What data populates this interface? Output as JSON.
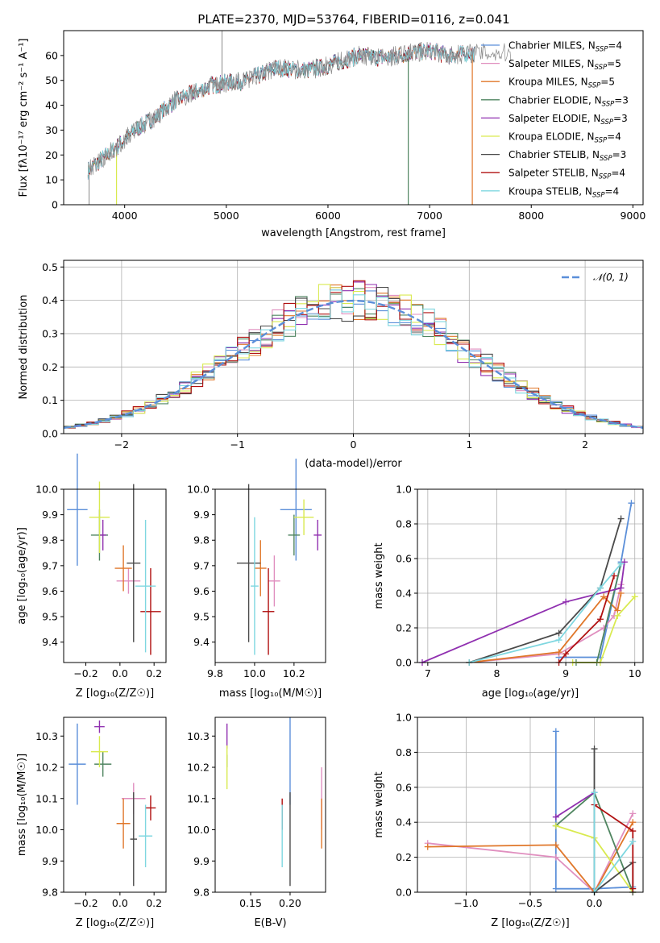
{
  "title": "PLATE=2370, MJD=53764, FIBERID=0116, z=0.041",
  "models": [
    {
      "name": "Chabrier MILES",
      "nssp": "4",
      "color": "#5b8fd9"
    },
    {
      "name": "Salpeter MILES",
      "nssp": "5",
      "color": "#e08fbf"
    },
    {
      "name": "Kroupa MILES",
      "nssp": "5",
      "color": "#e0772a"
    },
    {
      "name": "Chabrier ELODIE",
      "nssp": "3",
      "color": "#4f8560"
    },
    {
      "name": "Salpeter ELODIE",
      "nssp": "3",
      "color": "#9030b0"
    },
    {
      "name": "Kroupa ELODIE",
      "nssp": "4",
      "color": "#d9ea50"
    },
    {
      "name": "Chabrier STELIB",
      "nssp": "3",
      "color": "#4a4a4a"
    },
    {
      "name": "Salpeter STELIB",
      "nssp": "4",
      "color": "#b01010"
    },
    {
      "name": "Kroupa STELIB",
      "nssp": "4",
      "color": "#7fd7e0"
    }
  ],
  "chart_data": [
    {
      "type": "line",
      "title": "PLATE=2370, MJD=53764, FIBERID=0116, z=0.041",
      "xlabel": "wavelength [Angstrom, rest frame]",
      "ylabel": "Flux [fλ10⁻¹⁷ erg cm⁻² s⁻¹ A⁻¹]",
      "xlim": [
        3400,
        9100
      ],
      "ylim": [
        0,
        70
      ],
      "xticks": [
        "4000",
        "5000",
        "6000",
        "7000",
        "8000",
        "9000"
      ],
      "yticks": [
        "0",
        "10",
        "20",
        "30",
        "40",
        "50",
        "60"
      ],
      "grid": false,
      "legend": "right",
      "spectrum_knots": {
        "x": [
          3640,
          3800,
          4000,
          4100,
          4300,
          4500,
          4860,
          5000,
          5200,
          5500,
          5800,
          6000,
          6300,
          6560,
          6800,
          7000,
          7200,
          7400
        ],
        "y": [
          14,
          19,
          26,
          30,
          35,
          42,
          48,
          49,
          50,
          55,
          54,
          56,
          60,
          59,
          61,
          62,
          60,
          61
        ]
      },
      "model_cutoffs": [
        7420,
        6790,
        3920
      ],
      "cutoff_models": [
        "Kroupa MILES",
        "Chabrier ELODIE",
        "Kroupa ELODIE"
      ]
    },
    {
      "type": "bar",
      "xlabel": "(data-model)/error",
      "ylabel": "Normed distribution",
      "xlim": [
        -2.5,
        2.5
      ],
      "ylim": [
        0,
        0.52
      ],
      "xticks": [
        "−2",
        "−1",
        "0",
        "1",
        "2"
      ],
      "yticks": [
        "0.0",
        "0.1",
        "0.2",
        "0.3",
        "0.4",
        "0.5"
      ],
      "grid": true,
      "reference_label": "𝒩(0, 1)",
      "bin_width": 0.1,
      "bin_start": -2.5
    },
    {
      "type": "scatter",
      "xlabel": "Z [log₁₀(Z/Z☉)]",
      "ylabel": "age  [log₁₀(age/yr)]",
      "xlim": [
        -0.33,
        0.27
      ],
      "ylim": [
        9.32,
        10.0
      ],
      "xticks": [
        "−0.2",
        "0.0",
        "0.2"
      ],
      "yticks": [
        "9.4",
        "9.5",
        "9.6",
        "9.7",
        "9.8",
        "9.9",
        "10.0"
      ],
      "points": [
        {
          "x": -0.25,
          "xerr": 0.06,
          "y": 9.92,
          "yerr": 0.22
        },
        {
          "x": 0.05,
          "xerr": 0.07,
          "y": 9.64,
          "yerr": 0.05
        },
        {
          "x": 0.02,
          "xerr": 0.05,
          "y": 9.69,
          "yerr": 0.09
        },
        {
          "x": -0.12,
          "xerr": 0.05,
          "y": 9.82,
          "yerr": 0.1
        },
        {
          "x": -0.1,
          "xerr": 0.02,
          "y": 9.82,
          "yerr": 0.06
        },
        {
          "x": -0.12,
          "xerr": 0.06,
          "y": 9.89,
          "yerr": 0.14
        },
        {
          "x": 0.08,
          "xerr": 0.04,
          "y": 9.71,
          "yerr": 0.31
        },
        {
          "x": 0.18,
          "xerr": 0.06,
          "y": 9.52,
          "yerr": 0.17
        },
        {
          "x": 0.15,
          "xerr": 0.06,
          "y": 9.62,
          "yerr": 0.26
        }
      ]
    },
    {
      "type": "scatter",
      "xlabel": "mass [log₁₀(M/M☉)]",
      "ylabel": "",
      "xlim": [
        9.8,
        10.36
      ],
      "ylim": [
        9.32,
        10.0
      ],
      "xticks": [
        "9.8",
        "10.0",
        "10.2"
      ],
      "yticks": [
        "9.4",
        "9.5",
        "9.6",
        "9.7",
        "9.8",
        "9.9",
        "10.0"
      ],
      "points": [
        {
          "x": 10.21,
          "xerr": 0.08,
          "y": 9.92,
          "yerr": 0.2
        },
        {
          "x": 10.1,
          "xerr": 0.03,
          "y": 9.64,
          "yerr": 0.1
        },
        {
          "x": 10.03,
          "xerr": 0.03,
          "y": 9.69,
          "yerr": 0.11
        },
        {
          "x": 10.2,
          "xerr": 0.03,
          "y": 9.82,
          "yerr": 0.08
        },
        {
          "x": 10.32,
          "xerr": 0.02,
          "y": 9.82,
          "yerr": 0.06
        },
        {
          "x": 10.25,
          "xerr": 0.05,
          "y": 9.89,
          "yerr": 0.07
        },
        {
          "x": 9.97,
          "xerr": 0.06,
          "y": 9.71,
          "yerr": 0.31
        },
        {
          "x": 10.07,
          "xerr": 0.03,
          "y": 9.52,
          "yerr": 0.17
        },
        {
          "x": 10.0,
          "xerr": 0.02,
          "y": 9.62,
          "yerr": 0.27
        }
      ]
    },
    {
      "type": "line",
      "xlabel": "age  [log₁₀(age/yr)]",
      "ylabel": "mass weight",
      "xlim": [
        6.85,
        10.12
      ],
      "ylim": [
        0,
        1.0
      ],
      "xticks": [
        "7",
        "8",
        "9",
        "10"
      ],
      "yticks": [
        "0.0",
        "0.2",
        "0.4",
        "0.6",
        "0.8",
        "1.0"
      ],
      "grid": true,
      "series": [
        {
          "model": "Chabrier MILES",
          "x": [
            8.9,
            9.5,
            9.8,
            9.95
          ],
          "y": [
            0.03,
            0.03,
            0.58,
            0.92
          ]
        },
        {
          "model": "Salpeter MILES",
          "x": [
            7.6,
            8.9,
            9.55,
            9.7,
            9.8
          ],
          "y": [
            0.0,
            0.05,
            0.2,
            0.27,
            0.45
          ]
        },
        {
          "model": "Kroupa MILES",
          "x": [
            7.6,
            8.9,
            9.55,
            9.75,
            9.8
          ],
          "y": [
            0.0,
            0.06,
            0.38,
            0.3,
            0.4
          ]
        },
        {
          "model": "Chabrier ELODIE",
          "x": [
            9.15,
            9.45,
            9.8
          ],
          "y": [
            0.0,
            0.0,
            0.57
          ]
        },
        {
          "model": "Salpeter ELODIE",
          "x": [
            6.92,
            9.0,
            9.8,
            9.85
          ],
          "y": [
            0.0,
            0.35,
            0.43,
            0.58
          ]
        },
        {
          "model": "Kroupa ELODIE",
          "x": [
            9.1,
            9.5,
            9.75,
            10.0
          ],
          "y": [
            0.0,
            0.0,
            0.27,
            0.38
          ]
        },
        {
          "model": "Chabrier STELIB",
          "x": [
            7.6,
            8.9,
            9.5,
            9.8
          ],
          "y": [
            0.0,
            0.17,
            0.43,
            0.83
          ]
        },
        {
          "model": "Salpeter STELIB",
          "x": [
            8.9,
            9.0,
            9.5,
            9.7
          ],
          "y": [
            0.0,
            0.05,
            0.25,
            0.5
          ]
        },
        {
          "model": "Kroupa STELIB",
          "x": [
            7.6,
            8.9,
            9.5,
            9.8
          ],
          "y": [
            0.0,
            0.13,
            0.43,
            0.57
          ]
        }
      ]
    },
    {
      "type": "scatter",
      "xlabel": "Z [log₁₀(Z/Z☉)]",
      "ylabel": "mass [log₁₀(M/M☉)]",
      "xlim": [
        -0.33,
        0.27
      ],
      "ylim": [
        9.8,
        10.36
      ],
      "xticks": [
        "−0.2",
        "0.0",
        "0.2"
      ],
      "yticks": [
        "9.8",
        "9.9",
        "10.0",
        "10.1",
        "10.2",
        "10.3"
      ],
      "points": [
        {
          "x": -0.25,
          "xerr": 0.05,
          "y": 10.21,
          "yerr": 0.13
        },
        {
          "x": 0.08,
          "xerr": 0.07,
          "y": 10.1,
          "yerr": 0.05
        },
        {
          "x": 0.02,
          "xerr": 0.04,
          "y": 10.02,
          "yerr": 0.08
        },
        {
          "x": -0.1,
          "xerr": 0.05,
          "y": 10.21,
          "yerr": 0.04
        },
        {
          "x": -0.12,
          "xerr": 0.03,
          "y": 10.33,
          "yerr": 0.02
        },
        {
          "x": -0.12,
          "xerr": 0.05,
          "y": 10.25,
          "yerr": 0.05
        },
        {
          "x": 0.08,
          "xerr": 0.02,
          "y": 9.97,
          "yerr": 0.15
        },
        {
          "x": 0.18,
          "xerr": 0.03,
          "y": 10.07,
          "yerr": 0.04
        },
        {
          "x": 0.15,
          "xerr": 0.04,
          "y": 9.98,
          "yerr": 0.1
        }
      ]
    },
    {
      "type": "scatter",
      "xlabel": "E(B-V)",
      "ylabel": "",
      "xlim": [
        0.105,
        0.245
      ],
      "ylim": [
        9.8,
        10.36
      ],
      "xticks": [
        "0.15",
        "0.20"
      ],
      "yticks": [
        "9.8",
        "9.9",
        "10.0",
        "10.1",
        "10.2",
        "10.3"
      ],
      "points": [
        {
          "x": 0.2,
          "y": 10.22,
          "yerr": 0.14
        },
        {
          "x": 0.24,
          "y": 10.1,
          "yerr": 0.1
        },
        {
          "x": 0.24,
          "y": 10.02,
          "yerr": 0.08
        },
        {
          "x": 0.12,
          "y": 10.22,
          "yerr": 0.02
        },
        {
          "x": 0.12,
          "y": 10.3,
          "yerr": 0.04
        },
        {
          "x": 0.12,
          "y": 10.2,
          "yerr": 0.07
        },
        {
          "x": 0.2,
          "y": 9.97,
          "yerr": 0.15
        },
        {
          "x": 0.19,
          "y": 10.05,
          "yerr": 0.05
        },
        {
          "x": 0.19,
          "y": 9.98,
          "yerr": 0.1
        }
      ]
    },
    {
      "type": "line",
      "xlabel": "Z [log₁₀(Z/Z☉)]",
      "ylabel": "mass weight",
      "xlim": [
        -1.38,
        0.38
      ],
      "ylim": [
        0,
        1.0
      ],
      "xticks": [
        "−1.0",
        "−0.5",
        "0.0"
      ],
      "yticks": [
        "0.0",
        "0.2",
        "0.4",
        "0.6",
        "0.8",
        "1.0"
      ],
      "grid": true,
      "series": [
        {
          "model": "Chabrier MILES",
          "x": [
            -0.3,
            -0.3,
            -0.0,
            0.3
          ],
          "y": [
            0.92,
            0.02,
            0.02,
            0.03
          ]
        },
        {
          "model": "Salpeter MILES",
          "x": [
            -1.3,
            -0.3,
            0.0,
            0.3
          ],
          "y": [
            0.28,
            0.2,
            0.0,
            0.45
          ]
        },
        {
          "model": "Kroupa MILES",
          "x": [
            -1.3,
            -0.3,
            0.0,
            0.3
          ],
          "y": [
            0.26,
            0.27,
            0.0,
            0.4
          ]
        },
        {
          "model": "Chabrier ELODIE",
          "x": [
            -0.3,
            0.0,
            0.3
          ],
          "y": [
            0.38,
            0.57,
            0.0
          ]
        },
        {
          "model": "Salpeter ELODIE",
          "x": [
            -0.3,
            0.0
          ],
          "y": [
            0.43,
            0.57
          ]
        },
        {
          "model": "Kroupa ELODIE",
          "x": [
            -0.3,
            0.0,
            0.3
          ],
          "y": [
            0.38,
            0.31,
            0.0
          ]
        },
        {
          "model": "Chabrier STELIB",
          "x": [
            0.0,
            0.0,
            0.3,
            0.3
          ],
          "y": [
            0.82,
            0.0,
            0.17,
            0.0
          ]
        },
        {
          "model": "Salpeter STELIB",
          "x": [
            0.0,
            0.3,
            0.3
          ],
          "y": [
            0.5,
            0.35,
            0.02
          ]
        },
        {
          "model": "Kroupa STELIB",
          "x": [
            0.0,
            0.0,
            0.3
          ],
          "y": [
            0.57,
            0.0,
            0.29
          ]
        }
      ]
    }
  ]
}
